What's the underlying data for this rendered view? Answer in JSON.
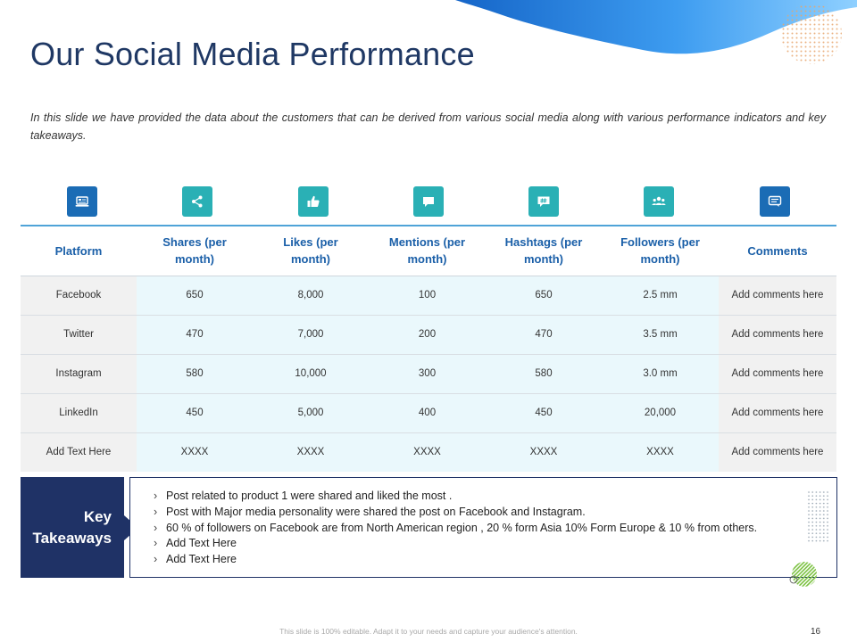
{
  "slide": {
    "title": "Our Social Media Performance",
    "intro": "In this slide we have provided the data about the customers that can be derived from various social media along with various performance indicators and  key takeaways."
  },
  "icons": [
    {
      "name": "laptop-icon",
      "color": "#1b6cb5"
    },
    {
      "name": "share-icon",
      "color": "#2ab0b5"
    },
    {
      "name": "thumbs-up-icon",
      "color": "#2ab0b5"
    },
    {
      "name": "chat-bubble-icon",
      "color": "#2ab0b5"
    },
    {
      "name": "hashtag-bubble-icon",
      "color": "#2ab0b5"
    },
    {
      "name": "group-icon",
      "color": "#2ab0b5"
    },
    {
      "name": "comment-icon",
      "color": "#1b6cb5"
    }
  ],
  "table": {
    "headers": [
      "Platform",
      "Shares (per month)",
      "Likes (per month)",
      "Mentions (per month)",
      "Hashtags (per month)",
      "Followers (per month)",
      "Comments"
    ],
    "rows": [
      [
        "Facebook",
        "650",
        "8,000",
        "100",
        "650",
        "2.5 mm",
        "Add comments here"
      ],
      [
        "Twitter",
        "470",
        "7,000",
        "200",
        "470",
        "3.5 mm",
        "Add comments here"
      ],
      [
        "Instagram",
        "580",
        "10,000",
        "300",
        "580",
        "3.0 mm",
        "Add comments here"
      ],
      [
        "LinkedIn",
        "450",
        "5,000",
        "400",
        "450",
        "20,000",
        "Add comments here"
      ],
      [
        "Add Text Here",
        "XXXX",
        "XXXX",
        "XXXX",
        "XXXX",
        "XXXX",
        "Add comments here"
      ]
    ]
  },
  "takeaways": {
    "label_line1": "Key",
    "label_line2": "Takeaways",
    "items": [
      "Post related to product 1 were shared and liked the most .",
      "Post with Major media personality were shared the post on Facebook and Instagram.",
      "60 % of followers on Facebook are from North American region , 20 % form Asia 10% Form Europe & 10 % from others.",
      "Add Text Here",
      "Add Text Here"
    ]
  },
  "footer": {
    "note": "This slide is 100% editable. Adapt it to your needs and capture your audience's attention.",
    "page_number": "16"
  },
  "colors": {
    "title": "#1f3864",
    "header_text": "#1a5fa8",
    "navy": "#1f3266",
    "teal": "#2ab0b5",
    "blue": "#1b6cb5"
  }
}
